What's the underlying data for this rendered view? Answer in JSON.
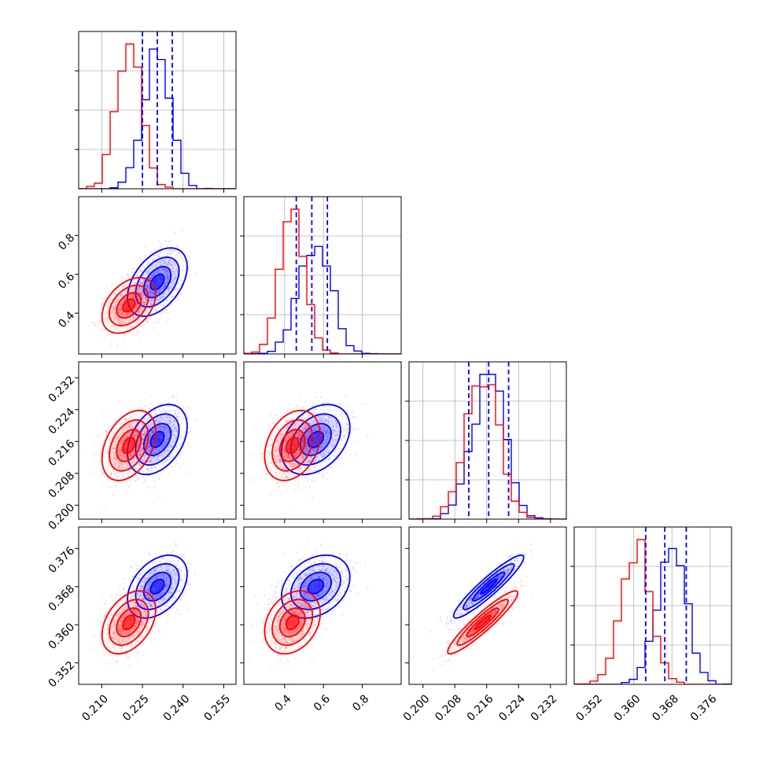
{
  "figure": {
    "kind": "corner plot",
    "n_params": 4
  },
  "colors": {
    "series_a": "#0000ff",
    "series_b": "#ff0000",
    "grid": "#b0b0b0",
    "frame": "#000000"
  },
  "chart_data": {
    "type": "scatter",
    "grid": true,
    "legend": "none",
    "params": [
      {
        "ticks": [
          0.21,
          0.225,
          0.24,
          0.255
        ],
        "tick_labels": [
          "0.210",
          "0.225",
          "0.240",
          "0.255"
        ],
        "range": [
          0.2015,
          0.2595
        ]
      },
      {
        "ticks": [
          0.4,
          0.6,
          0.8
        ],
        "tick_labels": [
          "0.4",
          "0.6",
          "0.8"
        ],
        "range": [
          0.19,
          1.0
        ]
      },
      {
        "ticks": [
          0.2,
          0.208,
          0.216,
          0.224,
          0.232
        ],
        "tick_labels": [
          "0.200",
          "0.208",
          "0.216",
          "0.224",
          "0.232"
        ],
        "range": [
          0.1965,
          0.236
        ]
      },
      {
        "ticks": [
          0.352,
          0.36,
          0.368,
          0.376
        ],
        "tick_labels": [
          "0.352",
          "0.360",
          "0.368",
          "0.376"
        ],
        "range": [
          0.3475,
          0.3805
        ]
      }
    ],
    "series": [
      {
        "color": "#0000ff",
        "mean": [
          0.2305,
          0.56,
          0.2165,
          0.368
        ],
        "std": [
          0.005,
          0.08,
          0.004,
          0.003
        ],
        "corr": [
          [
            1,
            0.45,
            0.38,
            0.4
          ],
          [
            0.45,
            1,
            0.35,
            0.3
          ],
          [
            0.38,
            0.35,
            1,
            0.93
          ],
          [
            0.4,
            0.3,
            0.93,
            1
          ]
        ],
        "quantile_lines": [
          [
            0.225,
            0.2305,
            0.236
          ],
          [
            0.46,
            0.54,
            0.62
          ],
          [
            0.2115,
            0.2165,
            0.2215
          ],
          [
            0.3625,
            0.3665,
            0.371
          ]
        ]
      },
      {
        "color": "#ff0000",
        "mean": [
          0.22,
          0.44,
          0.215,
          0.3605
        ],
        "std": [
          0.0045,
          0.065,
          0.004,
          0.003
        ],
        "corr": [
          [
            1,
            0.4,
            0.38,
            0.4
          ],
          [
            0.4,
            1,
            0.3,
            0.28
          ],
          [
            0.38,
            0.3,
            1,
            0.93
          ],
          [
            0.4,
            0.28,
            0.93,
            1
          ]
        ]
      }
    ]
  }
}
